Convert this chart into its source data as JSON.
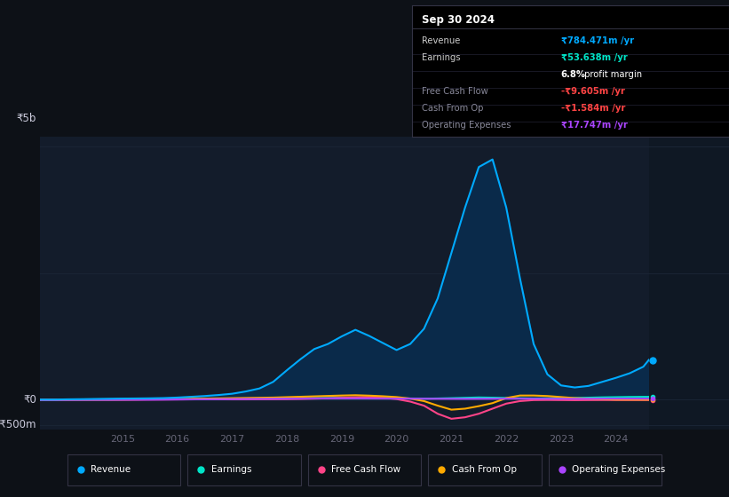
{
  "bg_color": "#0d1117",
  "plot_bg_color": "#131c2b",
  "right_panel_color": "#0f1824",
  "grid_color": "#1a2535",
  "ylabel_top": "₹5b",
  "ylabel_zero": "₹0",
  "ylabel_bottom": "-₹500m",
  "x_years": [
    2013.5,
    2013.75,
    2014.0,
    2014.25,
    2014.5,
    2014.75,
    2015.0,
    2015.25,
    2015.5,
    2015.75,
    2016.0,
    2016.25,
    2016.5,
    2016.75,
    2017.0,
    2017.25,
    2017.5,
    2017.75,
    2018.0,
    2018.25,
    2018.5,
    2018.75,
    2019.0,
    2019.25,
    2019.5,
    2019.75,
    2020.0,
    2020.25,
    2020.5,
    2020.75,
    2021.0,
    2021.25,
    2021.5,
    2021.75,
    2022.0,
    2022.25,
    2022.5,
    2022.75,
    2023.0,
    2023.25,
    2023.5,
    2023.75,
    2024.0,
    2024.25,
    2024.5,
    2024.6
  ],
  "revenue": [
    0,
    0,
    5,
    8,
    12,
    16,
    20,
    22,
    25,
    30,
    40,
    55,
    70,
    90,
    115,
    160,
    220,
    350,
    580,
    800,
    1000,
    1100,
    1250,
    1380,
    1260,
    1120,
    980,
    1100,
    1400,
    2000,
    2900,
    3800,
    4600,
    4750,
    3800,
    2400,
    1100,
    500,
    280,
    240,
    270,
    350,
    430,
    520,
    650,
    784
  ],
  "earnings": [
    0,
    0,
    2,
    3,
    4,
    5,
    6,
    7,
    8,
    9,
    10,
    12,
    14,
    16,
    18,
    20,
    22,
    24,
    26,
    28,
    30,
    32,
    35,
    38,
    36,
    33,
    28,
    22,
    18,
    22,
    28,
    35,
    42,
    38,
    32,
    26,
    22,
    25,
    28,
    32,
    38,
    44,
    48,
    52,
    54,
    54
  ],
  "free_cash_flow": [
    0,
    0,
    -2,
    -3,
    -4,
    -4,
    -3,
    -2,
    -1,
    0,
    2,
    4,
    5,
    5,
    4,
    4,
    5,
    6,
    8,
    12,
    18,
    25,
    35,
    45,
    50,
    35,
    10,
    -40,
    -120,
    -280,
    -380,
    -350,
    -280,
    -180,
    -80,
    -30,
    -10,
    -8,
    -10,
    -12,
    -10,
    -9,
    -9.5,
    -9.6,
    -9.605,
    -9.605
  ],
  "cash_from_op": [
    -5,
    -5,
    -4,
    -3,
    -2,
    -1,
    0,
    2,
    5,
    8,
    12,
    16,
    20,
    24,
    28,
    32,
    36,
    40,
    48,
    56,
    64,
    72,
    80,
    86,
    78,
    66,
    50,
    20,
    -30,
    -120,
    -200,
    -180,
    -130,
    -70,
    30,
    80,
    80,
    70,
    50,
    30,
    18,
    8,
    0,
    -1,
    -1.584,
    -1.584
  ],
  "operating_expenses": [
    -8,
    -8,
    -7,
    -6,
    -5,
    -5,
    -4,
    -3,
    -2,
    0,
    2,
    4,
    6,
    8,
    10,
    12,
    14,
    16,
    18,
    20,
    22,
    22,
    22,
    22,
    21,
    20,
    19,
    18,
    17,
    16,
    15,
    14,
    15,
    16,
    18,
    18,
    17,
    16,
    15,
    15,
    16,
    17,
    17.5,
    17.747,
    17.747,
    17.747
  ],
  "revenue_color": "#00aaff",
  "earnings_color": "#00e5c8",
  "free_cash_flow_color": "#ff4488",
  "cash_from_op_color": "#ffaa00",
  "operating_expenses_color": "#aa44ff",
  "revenue_fill_color": "#0a2a4a",
  "x_ticks": [
    2015,
    2016,
    2017,
    2018,
    2019,
    2020,
    2021,
    2022,
    2023,
    2024
  ],
  "ylim_min": -600,
  "ylim_max": 5200,
  "line_width": 1.5,
  "legend_entries": [
    "Revenue",
    "Earnings",
    "Free Cash Flow",
    "Cash From Op",
    "Operating Expenses"
  ],
  "legend_colors": [
    "#00aaff",
    "#00e5c8",
    "#ff4488",
    "#ffaa00",
    "#aa44ff"
  ],
  "info_date": "Sep 30 2024",
  "info_rows": [
    {
      "label": "Revenue",
      "value": "₹784.471m /yr",
      "value_color": "#00aaff",
      "label_color": "#cccccc"
    },
    {
      "label": "Earnings",
      "value": "₹53.638m /yr",
      "value_color": "#00e5c8",
      "label_color": "#cccccc"
    },
    {
      "label": "",
      "value": "6.8% profit margin",
      "value_color": "#ffffff",
      "label_color": "#cccccc"
    },
    {
      "label": "Free Cash Flow",
      "value": "-₹9.605m /yr",
      "value_color": "#ff4444",
      "label_color": "#888899"
    },
    {
      "label": "Cash From Op",
      "value": "-₹1.584m /yr",
      "value_color": "#ff4444",
      "label_color": "#888899"
    },
    {
      "label": "Operating Expenses",
      "value": "₹17.747m /yr",
      "value_color": "#aa44ff",
      "label_color": "#888899"
    }
  ]
}
